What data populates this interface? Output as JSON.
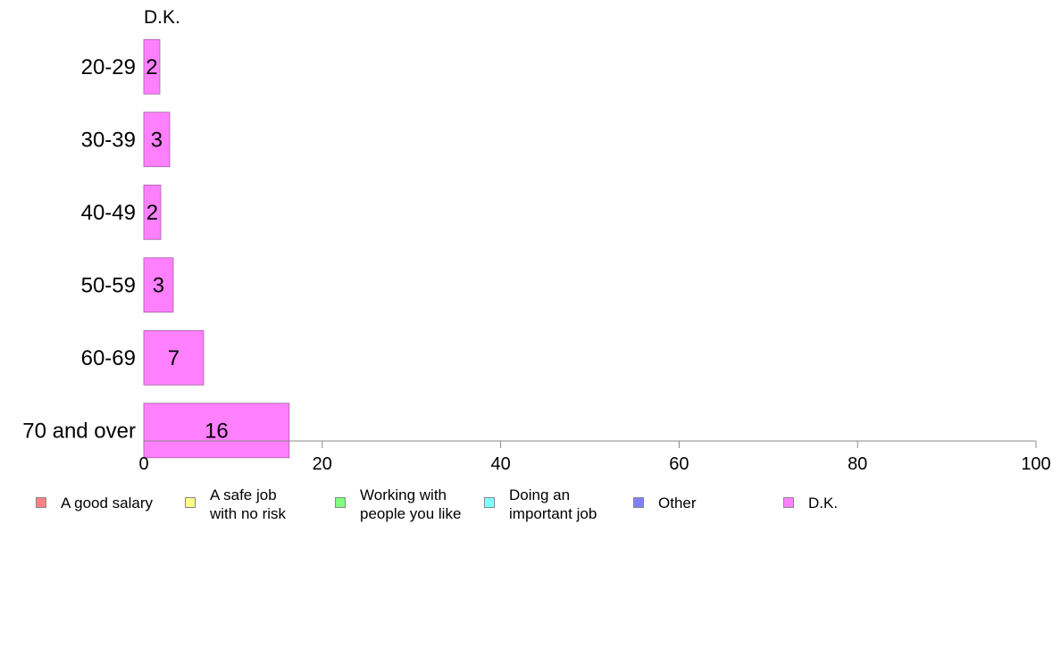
{
  "chart_data": {
    "type": "bar",
    "orientation": "horizontal",
    "title": "D.K.",
    "categories": [
      "20-29",
      "30-39",
      "40-49",
      "50-59",
      "60-69",
      "70 and over"
    ],
    "values": [
      1.8,
      2.9,
      1.9,
      3.3,
      6.7,
      16.3
    ],
    "value_labels": [
      "2",
      "3",
      "2",
      "3",
      "7",
      "16"
    ],
    "xlim": [
      0,
      100
    ],
    "x_ticks": [
      "0",
      "20",
      "40",
      "60",
      "80",
      "100"
    ],
    "x_tick_values": [
      0,
      20,
      40,
      60,
      80,
      100
    ],
    "bar_color": "#ff80ff",
    "grid": false,
    "legend_position": "bottom"
  },
  "legend": {
    "items": [
      {
        "label": "A good salary",
        "color": "#ff8080"
      },
      {
        "label": "A safe job\nwith no risk",
        "color": "#ffff80"
      },
      {
        "label": "Working with\npeople you like",
        "color": "#80ff80"
      },
      {
        "label": "Doing an\nimportant job",
        "color": "#80ffff"
      },
      {
        "label": "Other",
        "color": "#8080ff"
      },
      {
        "label": "D.K.",
        "color": "#ff80ff"
      }
    ]
  }
}
